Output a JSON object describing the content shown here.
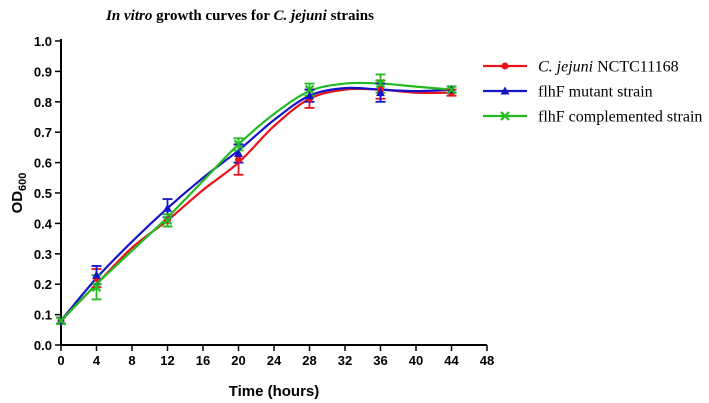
{
  "chart_data": {
    "type": "line",
    "title_italic_1": "In vitro",
    "title_mid": " growth curves for ",
    "title_italic_2": "C. jejuni",
    "title_end": " strains",
    "xlabel": "Time (hours)",
    "ylabel_main": "OD",
    "ylabel_sub": "600",
    "xlim": [
      0,
      48
    ],
    "ylim": [
      0,
      1.0
    ],
    "xticks": [
      "0",
      "4",
      "8",
      "12",
      "16",
      "20",
      "24",
      "28",
      "32",
      "36",
      "40",
      "44",
      "48"
    ],
    "yticks": [
      "0.0",
      "0.1",
      "0.2",
      "0.3",
      "0.4",
      "0.5",
      "0.6",
      "0.7",
      "0.8",
      "0.9",
      "1.0"
    ],
    "series": [
      {
        "name": "C. jejuni NCTC11168",
        "name_italic": "C. jejuni",
        "name_rest": " NCTC11168",
        "color": "#e8141c",
        "marker": "circle",
        "x": [
          0,
          4,
          12,
          20,
          28,
          36,
          44
        ],
        "y": [
          0.08,
          0.22,
          0.41,
          0.61,
          0.81,
          0.84,
          0.83
        ],
        "err": [
          0.01,
          0.03,
          0.02,
          0.05,
          0.03,
          0.03,
          0.01
        ],
        "curve": [
          [
            0,
            0.08
          ],
          [
            4,
            0.2
          ],
          [
            8,
            0.32
          ],
          [
            12,
            0.41
          ],
          [
            16,
            0.51
          ],
          [
            20,
            0.6
          ],
          [
            24,
            0.72
          ],
          [
            28,
            0.81
          ],
          [
            32,
            0.84
          ],
          [
            36,
            0.84
          ],
          [
            40,
            0.83
          ],
          [
            44,
            0.83
          ]
        ]
      },
      {
        "name": "flhF mutant strain",
        "color": "#1515c8",
        "marker": "triangle",
        "x": [
          0,
          4,
          12,
          20,
          28,
          36,
          44
        ],
        "y": [
          0.08,
          0.23,
          0.45,
          0.63,
          0.82,
          0.83,
          0.84
        ],
        "err": [
          0.01,
          0.03,
          0.03,
          0.03,
          0.02,
          0.03,
          0.01
        ],
        "curve": [
          [
            0,
            0.08
          ],
          [
            4,
            0.22
          ],
          [
            8,
            0.34
          ],
          [
            12,
            0.45
          ],
          [
            16,
            0.55
          ],
          [
            20,
            0.64
          ],
          [
            24,
            0.74
          ],
          [
            28,
            0.82
          ],
          [
            32,
            0.845
          ],
          [
            36,
            0.84
          ],
          [
            40,
            0.835
          ],
          [
            44,
            0.84
          ]
        ]
      },
      {
        "name": "flhF complemented strain",
        "color": "#22bb22",
        "marker": "cross",
        "x": [
          0,
          4,
          12,
          20,
          28,
          36,
          44
        ],
        "y": [
          0.08,
          0.19,
          0.41,
          0.66,
          0.84,
          0.86,
          0.84
        ],
        "err": [
          0.01,
          0.04,
          0.02,
          0.02,
          0.02,
          0.03,
          0.01
        ],
        "curve": [
          [
            0,
            0.08
          ],
          [
            4,
            0.2
          ],
          [
            8,
            0.31
          ],
          [
            12,
            0.42
          ],
          [
            16,
            0.54
          ],
          [
            20,
            0.66
          ],
          [
            24,
            0.76
          ],
          [
            28,
            0.835
          ],
          [
            32,
            0.86
          ],
          [
            36,
            0.86
          ],
          [
            40,
            0.85
          ],
          [
            44,
            0.84
          ]
        ]
      }
    ],
    "legend_position": "top-right"
  }
}
